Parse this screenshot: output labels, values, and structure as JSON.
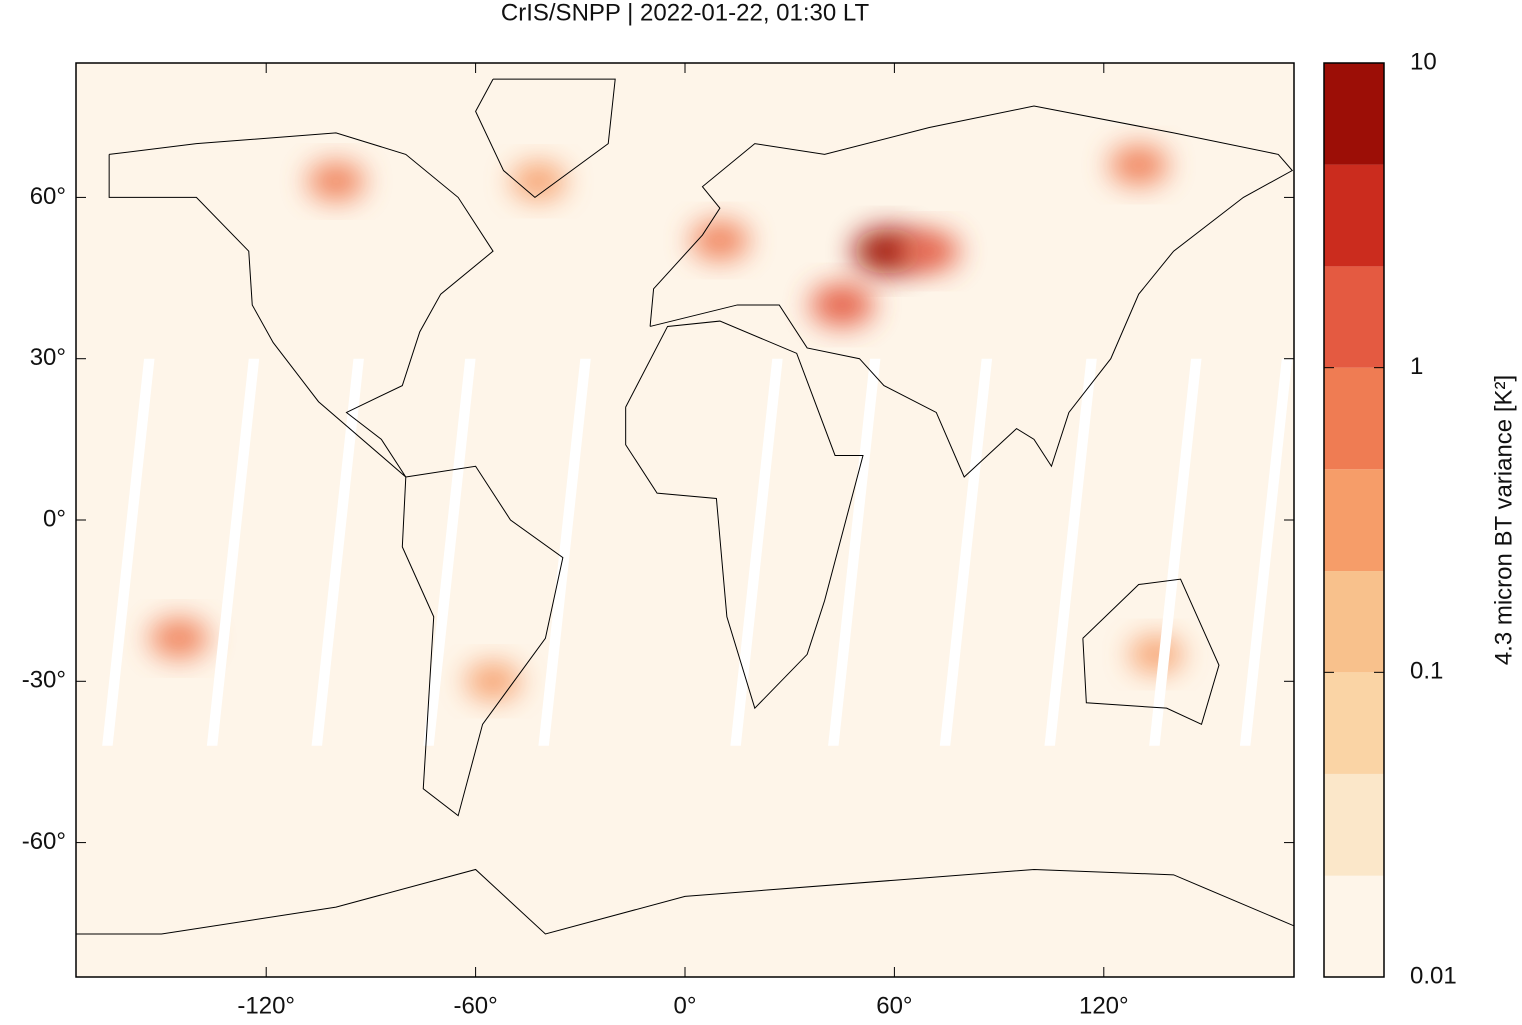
{
  "chart_data": {
    "type": "map",
    "title": "CrIS/SNPP | 2022-01-22, 01:30 LT",
    "xlim": [
      -174.5,
      174.5
    ],
    "ylim": [
      -85,
      85
    ],
    "xticks": [
      {
        "value": -120,
        "label": "-120°"
      },
      {
        "value": -60,
        "label": "-60°"
      },
      {
        "value": 0,
        "label": "0°"
      },
      {
        "value": 60,
        "label": "60°"
      },
      {
        "value": 120,
        "label": "120°"
      }
    ],
    "yticks": [
      {
        "value": -60,
        "label": "-60°"
      },
      {
        "value": -30,
        "label": "-30°"
      },
      {
        "value": 0,
        "label": "0°"
      },
      {
        "value": 30,
        "label": "30°"
      },
      {
        "value": 60,
        "label": "60°"
      }
    ],
    "colorbar": {
      "label": "4.3 micron BT variance [K²]",
      "lim": [
        0.01,
        10
      ],
      "log": true,
      "ticks": [
        0.01,
        0.1,
        1,
        10
      ],
      "levels": [
        0.01,
        0.0215,
        0.0464,
        0.1,
        0.215,
        0.464,
        1,
        2.15,
        4.64,
        10
      ],
      "colors": [
        "#fef5e9",
        "#fbe7c9",
        "#fad4a5",
        "#f8c18c",
        "#f69d69",
        "#ef7c53",
        "#e45a41",
        "#cb2c1e",
        "#9c0e06"
      ]
    },
    "hotspots": [
      {
        "lon": 58,
        "lat": 50,
        "value": 5
      },
      {
        "lon": 45,
        "lat": 40,
        "value": 2
      },
      {
        "lon": 70,
        "lat": 50,
        "value": 1
      },
      {
        "lon": 10,
        "lat": 52,
        "value": 0.7
      },
      {
        "lon": -100,
        "lat": 63,
        "value": 0.6
      },
      {
        "lon": -42,
        "lat": 63,
        "value": 0.4
      },
      {
        "lon": 130,
        "lat": 66,
        "value": 0.8
      },
      {
        "lon": -145,
        "lat": -22,
        "value": 0.8
      },
      {
        "lon": -55,
        "lat": -30,
        "value": 0.4
      },
      {
        "lon": 135,
        "lat": -25,
        "value": 0.3
      }
    ]
  }
}
